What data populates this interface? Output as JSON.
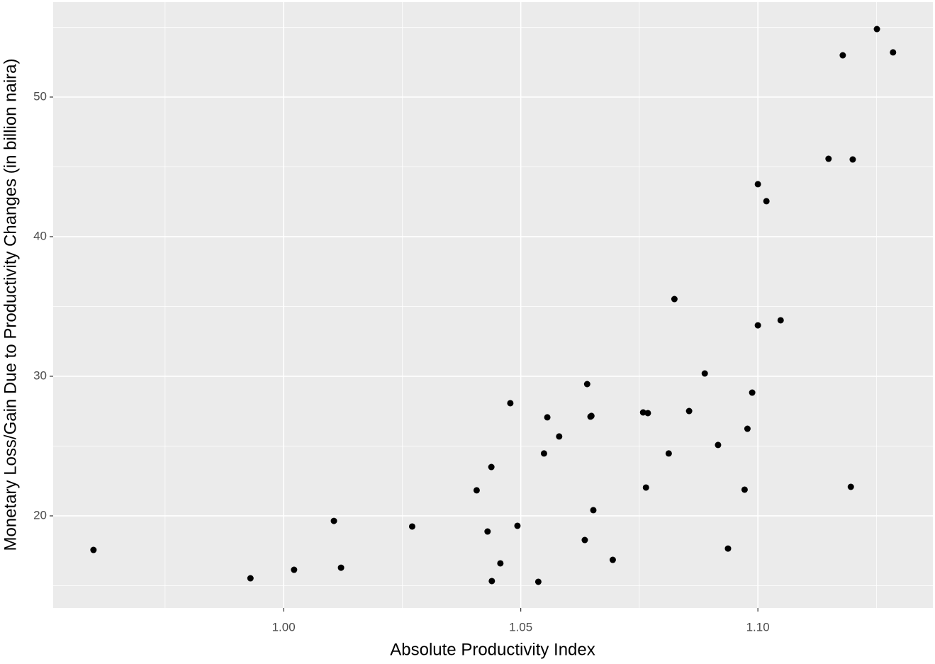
{
  "chart_data": {
    "type": "scatter",
    "x_label": "Absolute Productivity Index",
    "y_label": "Monetary Loss/Gain Due to Productivity Changes (in billion naira)",
    "color": "#000000",
    "grid": true,
    "xlim": [
      0.9514,
      1.1369
    ],
    "ylim": [
      13.4,
      56.8
    ],
    "xticks": [
      {
        "value": 1.0,
        "label": "1.00"
      },
      {
        "value": 1.05,
        "label": "1.05"
      },
      {
        "value": 1.1,
        "label": "1.10"
      }
    ],
    "yticks": [
      20,
      30,
      40,
      50
    ],
    "x": [
      0.9599,
      0.993,
      1.0022,
      1.0106,
      1.0121,
      1.0271,
      1.0407,
      1.043,
      1.0438,
      1.0439,
      1.0457,
      1.0478,
      1.0493,
      1.0537,
      1.0549,
      1.0556,
      1.0581,
      1.0635,
      1.064,
      1.0647,
      1.0649,
      1.0653,
      1.0694,
      1.0758,
      1.0768,
      1.0764,
      1.0812,
      1.0824,
      1.0855,
      1.0888,
      1.0916,
      1.0937,
      1.0972,
      1.0978,
      1.0988,
      1.1,
      1.1,
      1.1018,
      1.1048,
      1.1149,
      1.1179,
      1.1196,
      1.12,
      1.1251,
      1.1285
    ],
    "values": [
      17.56,
      15.53,
      16.14,
      19.64,
      16.29,
      19.24,
      21.83,
      18.88,
      23.5,
      15.33,
      16.6,
      28.07,
      19.29,
      15.28,
      24.47,
      27.06,
      25.69,
      18.27,
      29.44,
      27.11,
      27.16,
      20.41,
      16.85,
      27.41,
      27.36,
      22.03,
      24.47,
      35.53,
      27.51,
      30.2,
      25.08,
      17.66,
      21.88,
      26.24,
      28.83,
      33.65,
      43.76,
      42.54,
      34.01,
      45.58,
      52.99,
      22.08,
      45.53,
      54.87,
      53.2
    ]
  }
}
